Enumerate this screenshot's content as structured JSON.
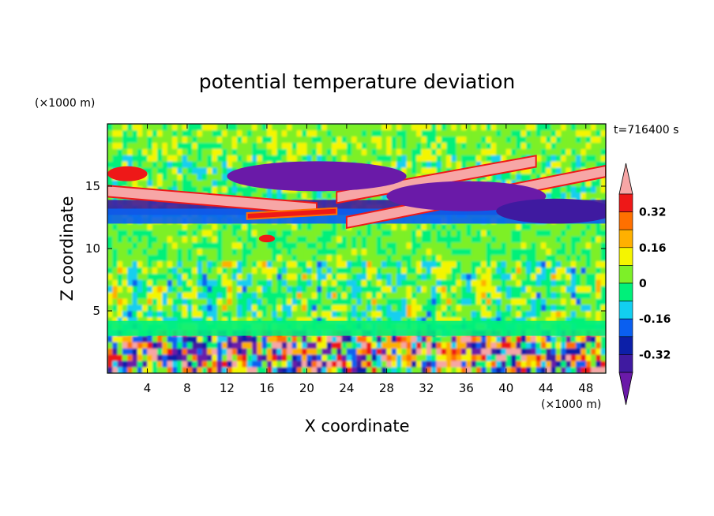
{
  "chart_data": {
    "type": "heatmap",
    "title": "potential temperature deviation",
    "xlabel": "X coordinate",
    "ylabel": "Z coordinate",
    "x_unit": "(×1000 m)",
    "y_unit": "(×1000 m)",
    "time_label": "t=716400 s",
    "xlim": [
      0,
      50
    ],
    "ylim": [
      0,
      20
    ],
    "x_ticks": [
      4,
      8,
      12,
      16,
      20,
      24,
      28,
      32,
      36,
      40,
      44,
      48
    ],
    "y_ticks": [
      5,
      10,
      15
    ],
    "colorbar": {
      "levels": [
        -0.48,
        -0.4,
        -0.32,
        -0.24,
        -0.16,
        -0.08,
        0,
        0.08,
        0.16,
        0.24,
        0.32,
        0.4
      ],
      "colors": [
        "#6a1aa8",
        "#3f1aa0",
        "#0c1fa8",
        "#0a5ff0",
        "#12cff0",
        "#00f07a",
        "#7df028",
        "#f5f500",
        "#ffb000",
        "#ff7000",
        "#ee1818",
        "#f7a6a6"
      ],
      "tick_labels": [
        "0.32",
        "0.16",
        "0",
        "-0.16",
        "-0.32"
      ],
      "tick_values": [
        0.32,
        0.16,
        0,
        -0.16,
        -0.32
      ]
    },
    "features": [
      {
        "kind": "band",
        "z": 13.3,
        "x0": 0,
        "x1": 50,
        "value": -0.4
      },
      {
        "kind": "band",
        "z": 12.6,
        "x0": 0,
        "x1": 50,
        "value": -0.24
      },
      {
        "kind": "band",
        "z": 3.6,
        "x0": 0,
        "x1": 50,
        "value": -0.08
      },
      {
        "kind": "streak",
        "x0": 0,
        "z0": 14.6,
        "x1": 21,
        "z1": 13.2,
        "w": 0.9,
        "value": 0.4
      },
      {
        "kind": "streak",
        "x0": 14,
        "z0": 12.6,
        "x1": 23,
        "z1": 13.0,
        "w": 0.5,
        "value": 0.32
      },
      {
        "kind": "streak",
        "x0": 23,
        "z0": 14.1,
        "x1": 43,
        "z1": 17.0,
        "w": 0.9,
        "value": 0.4
      },
      {
        "kind": "streak",
        "x0": 24,
        "z0": 12.1,
        "x1": 50,
        "z1": 16.2,
        "w": 0.9,
        "value": 0.4
      },
      {
        "kind": "blob",
        "x": 21,
        "z": 15.8,
        "rx": 9,
        "rz": 1.2,
        "value": -0.48
      },
      {
        "kind": "blob",
        "x": 36,
        "z": 14.2,
        "rx": 8,
        "rz": 1.2,
        "value": -0.48
      },
      {
        "kind": "blob",
        "x": 45,
        "z": 13.0,
        "rx": 6,
        "rz": 1.0,
        "value": -0.4
      },
      {
        "kind": "blob",
        "x": 2,
        "z": 16.0,
        "rx": 2,
        "rz": 0.6,
        "value": 0.32
      },
      {
        "kind": "blob",
        "x": 16,
        "z": 10.8,
        "rx": 0.8,
        "rz": 0.3,
        "value": 0.32
      }
    ]
  }
}
